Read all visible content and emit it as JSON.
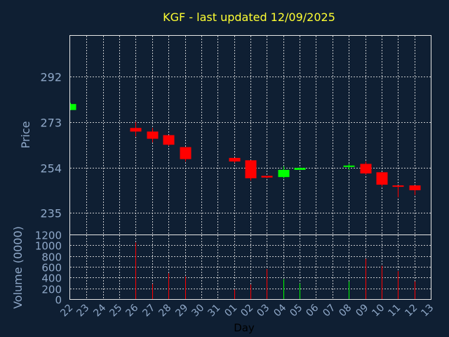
{
  "chart_data": {
    "type": "candlestick",
    "title": "KGF - last updated 12/09/2025",
    "price_panel": {
      "ylabel": "Price",
      "ylim": [
        226,
        309
      ],
      "yticks": [
        235,
        254,
        273,
        292
      ]
    },
    "volume_panel": {
      "ylabel": "Volume (0000)",
      "ylim": [
        0,
        1200
      ],
      "yticks": [
        0,
        200,
        400,
        600,
        800,
        1000,
        1200
      ]
    },
    "xlabel": "Day",
    "x_ticks": [
      "22",
      "23",
      "24",
      "25",
      "26",
      "27",
      "28",
      "29",
      "30",
      "31",
      "01",
      "02",
      "03",
      "04",
      "05",
      "06",
      "07",
      "08",
      "09",
      "10",
      "11",
      "12",
      "13"
    ],
    "colors": {
      "up": "#00ff00",
      "down": "#ff0000"
    },
    "candles": [
      {
        "day": "22",
        "open": 278.0,
        "high": 281.0,
        "low": 278.0,
        "close": 280.5,
        "volume": 0
      },
      {
        "day": "26",
        "open": 270.5,
        "high": 273.0,
        "low": 267.0,
        "close": 269.0,
        "volume": 1050
      },
      {
        "day": "27",
        "open": 269.0,
        "high": 270.5,
        "low": 264.5,
        "close": 266.0,
        "volume": 280
      },
      {
        "day": "28",
        "open": 267.5,
        "high": 267.5,
        "low": 263.0,
        "close": 263.5,
        "volume": 480
      },
      {
        "day": "29",
        "open": 262.5,
        "high": 262.5,
        "low": 256.5,
        "close": 257.5,
        "volume": 420
      },
      {
        "day": "01",
        "open": 258.0,
        "high": 258.0,
        "low": 256.0,
        "close": 256.5,
        "volume": 180
      },
      {
        "day": "02",
        "open": 257.0,
        "high": 257.0,
        "low": 248.5,
        "close": 249.5,
        "volume": 270
      },
      {
        "day": "03",
        "open": 250.5,
        "high": 250.5,
        "low": 249.5,
        "close": 249.8,
        "volume": 560
      },
      {
        "day": "04",
        "open": 250.0,
        "high": 254.5,
        "low": 249.5,
        "close": 253.0,
        "volume": 370
      },
      {
        "day": "05",
        "open": 253.0,
        "high": 254.0,
        "low": 253.0,
        "close": 253.8,
        "volume": 290
      },
      {
        "day": "08",
        "open": 254.5,
        "high": 255.5,
        "low": 253.0,
        "close": 254.8,
        "volume": 330
      },
      {
        "day": "09",
        "open": 255.5,
        "high": 256.5,
        "low": 251.0,
        "close": 251.5,
        "volume": 750
      },
      {
        "day": "10",
        "open": 252.0,
        "high": 252.0,
        "low": 246.0,
        "close": 246.8,
        "volume": 620
      },
      {
        "day": "11",
        "open": 246.5,
        "high": 246.5,
        "low": 241.5,
        "close": 246.0,
        "volume": 520
      },
      {
        "day": "12",
        "open": 246.5,
        "high": 246.5,
        "low": 242.5,
        "close": 244.5,
        "volume": 330
      }
    ]
  }
}
